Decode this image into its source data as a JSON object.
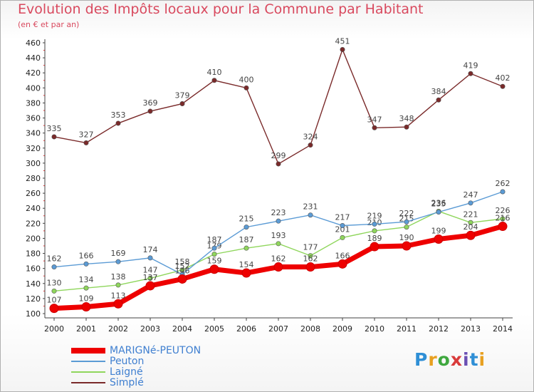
{
  "title": "Evolution des Impôts locaux pour la Commune par Habitant",
  "subtitle": "(en € et par an)",
  "logo": {
    "text": "Proxiti",
    "letter_colors": [
      "#2f8fd6",
      "#e8a020",
      "#3fa83f",
      "#d93a3a",
      "#6a4fb3",
      "#2f8fd6",
      "#e8a020"
    ]
  },
  "chart_data": {
    "type": "line",
    "x": [
      "2000",
      "2001",
      "2002",
      "2003",
      "2004",
      "2005",
      "2006",
      "2007",
      "2008",
      "2009",
      "2010",
      "2011",
      "2012",
      "2013",
      "2014"
    ],
    "ylim": [
      100,
      460
    ],
    "yticks": [
      100,
      120,
      140,
      160,
      180,
      200,
      220,
      240,
      260,
      280,
      300,
      320,
      340,
      360,
      380,
      400,
      420,
      440,
      460
    ],
    "grid": false,
    "legend_position": "bottom-left",
    "series": [
      {
        "name": "Simplé",
        "color": "#7a2a2a",
        "values": [
          335,
          327,
          353,
          369,
          379,
          410,
          400,
          299,
          324,
          451,
          347,
          348,
          384,
          419,
          402
        ]
      },
      {
        "name": "Laigné",
        "color": "#8fd65c",
        "values": [
          130,
          134,
          138,
          147,
          158,
          179,
          187,
          193,
          177,
          201,
          210,
          215,
          236,
          221,
          226
        ]
      },
      {
        "name": "Peuton",
        "color": "#5b9bd5",
        "values": [
          162,
          166,
          169,
          174,
          152,
          187,
          215,
          223,
          231,
          217,
          219,
          222,
          235,
          247,
          262
        ]
      },
      {
        "name": "MARIGNé-PEUTON",
        "color": "#ee0000",
        "values": [
          107,
          109,
          113,
          137,
          146,
          159,
          154,
          162,
          162,
          166,
          189,
          190,
          199,
          204,
          216
        ]
      }
    ]
  }
}
